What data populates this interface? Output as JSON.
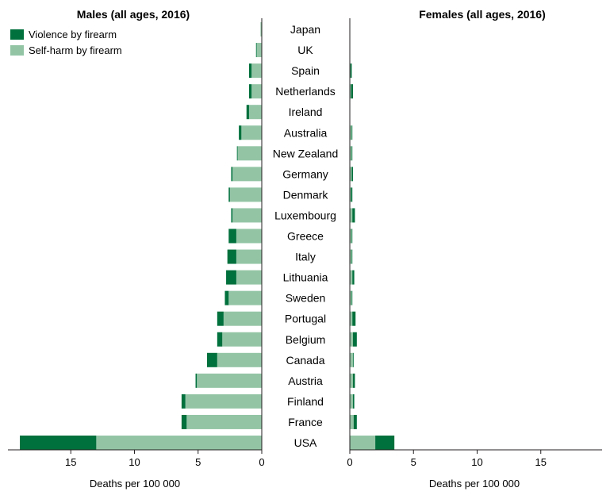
{
  "chart_data": [
    {
      "type": "bar",
      "orientation": "horizontal",
      "stacked": true,
      "title": "Males (all ages, 2016)",
      "xlabel": "Deaths per 100 000",
      "xlim": [
        0,
        20
      ],
      "xticks": [
        0,
        5,
        10,
        15
      ],
      "x_direction": "reversed",
      "legend_position": "top-left",
      "grid": false,
      "categories": [
        "Japan",
        "UK",
        "Spain",
        "Netherlands",
        "Ireland",
        "Australia",
        "New Zealand",
        "Germany",
        "Denmark",
        "Luxembourg",
        "Greece",
        "Italy",
        "Lithuania",
        "Sweden",
        "Portugal",
        "Belgium",
        "Canada",
        "Austria",
        "Finland",
        "France",
        "USA"
      ],
      "series": [
        {
          "name": "Self-harm by firearm",
          "color": "#93c5a5",
          "values": [
            0.1,
            0.4,
            0.8,
            0.8,
            1.0,
            1.6,
            1.9,
            2.3,
            2.5,
            2.3,
            2.0,
            2.0,
            2.0,
            2.6,
            3.0,
            3.1,
            3.5,
            5.1,
            6.0,
            5.9,
            13.0
          ]
        },
        {
          "name": "Violence by firearm",
          "color": "#00703c",
          "values": [
            0.0,
            0.05,
            0.2,
            0.2,
            0.2,
            0.2,
            0.05,
            0.1,
            0.1,
            0.1,
            0.6,
            0.7,
            0.8,
            0.3,
            0.5,
            0.4,
            0.8,
            0.1,
            0.3,
            0.4,
            6.0
          ]
        }
      ]
    },
    {
      "type": "bar",
      "orientation": "horizontal",
      "stacked": true,
      "title": "Females (all ages, 2016)",
      "xlabel": "Deaths per 100 000",
      "xlim": [
        0,
        20
      ],
      "xticks": [
        0,
        5,
        10,
        15
      ],
      "grid": false,
      "categories": [
        "Japan",
        "UK",
        "Spain",
        "Netherlands",
        "Ireland",
        "Australia",
        "New Zealand",
        "Germany",
        "Denmark",
        "Luxembourg",
        "Greece",
        "Italy",
        "Lithuania",
        "Sweden",
        "Portugal",
        "Belgium",
        "Canada",
        "Austria",
        "Finland",
        "France",
        "USA"
      ],
      "series": [
        {
          "name": "Self-harm by firearm",
          "color": "#93c5a5",
          "values": [
            0.0,
            0.0,
            0.05,
            0.1,
            0.0,
            0.15,
            0.15,
            0.15,
            0.1,
            0.2,
            0.15,
            0.15,
            0.2,
            0.15,
            0.2,
            0.25,
            0.25,
            0.25,
            0.25,
            0.3,
            2.0
          ]
        },
        {
          "name": "Violence by firearm",
          "color": "#00703c",
          "values": [
            0.0,
            0.0,
            0.1,
            0.15,
            0.0,
            0.05,
            0.05,
            0.1,
            0.1,
            0.2,
            0.05,
            0.05,
            0.15,
            0.05,
            0.25,
            0.3,
            0.05,
            0.15,
            0.1,
            0.25,
            1.5
          ]
        }
      ]
    }
  ],
  "legend": {
    "items": [
      {
        "label": "Violence by firearm",
        "color": "#00703c"
      },
      {
        "label": "Self-harm by firearm",
        "color": "#93c5a5"
      }
    ]
  }
}
